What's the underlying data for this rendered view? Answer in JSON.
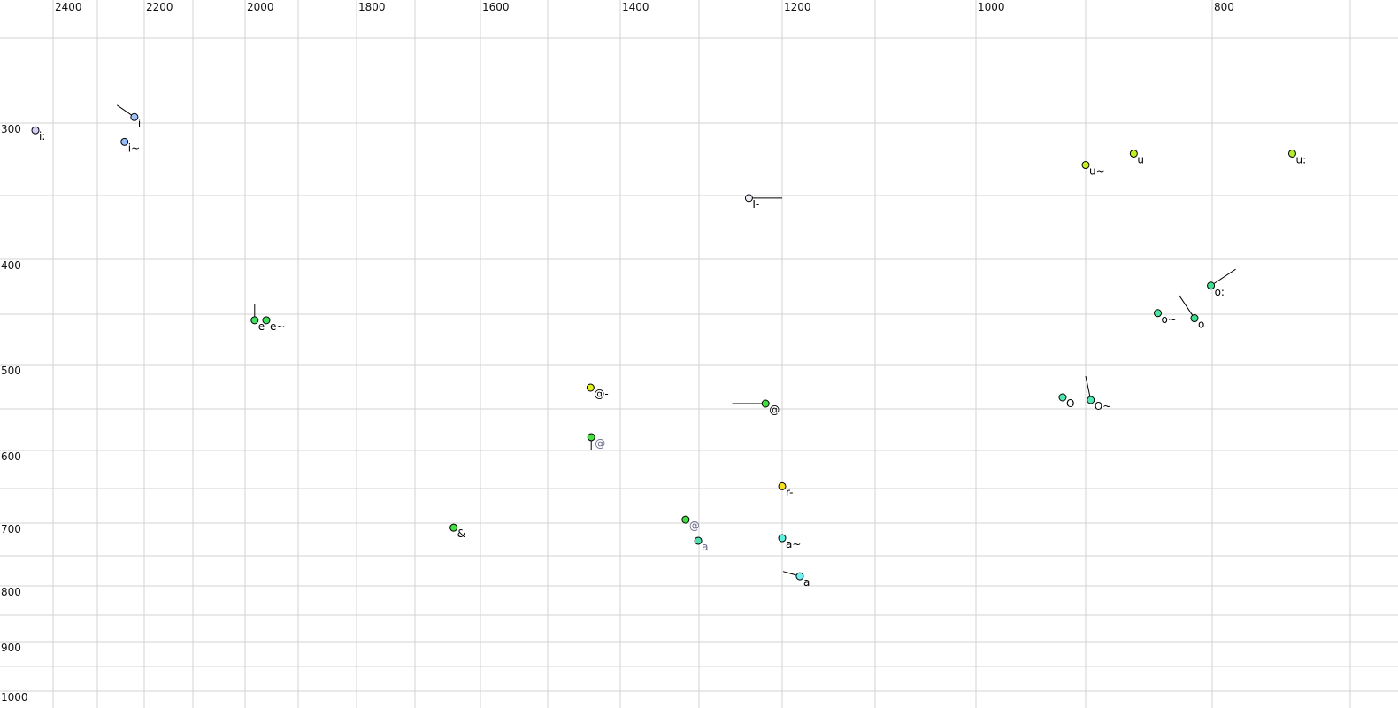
{
  "chart_data": {
    "type": "scatter",
    "title": "",
    "xlabel": "",
    "ylabel": "",
    "x_reversed": true,
    "y_reversed": true,
    "x_scale": "nonlinear (auditory)",
    "y_scale": "nonlinear (auditory)",
    "xlim": [
      2450,
      700
    ],
    "ylim": [
      200,
      1000
    ],
    "grid": true,
    "x_gridlines": [
      2400,
      2300,
      2200,
      2100,
      2000,
      1900,
      1800,
      1700,
      1600,
      1500,
      1400,
      1300,
      1200,
      1100,
      1000,
      900,
      800,
      700
    ],
    "y_gridlines": [
      200,
      300,
      350,
      400,
      450,
      500,
      550,
      600,
      650,
      700,
      750,
      800,
      850,
      900,
      950,
      1000
    ],
    "x_tick_labels": [
      "2400",
      "2200",
      "2000",
      "1800",
      "1600",
      "1400",
      "1200",
      "1000",
      "800"
    ],
    "y_tick_labels": [
      "300",
      "400",
      "500",
      "600",
      "700",
      "800",
      "900",
      "1000"
    ],
    "points": [
      {
        "label": "i:",
        "x": 2440,
        "y": 305,
        "color": "#d8ccf8",
        "label_color": "#000000"
      },
      {
        "label": "i",
        "x": 2221,
        "y": 293,
        "color": "#a4c2f6",
        "label_color": "#000000",
        "trail": [
          2258,
          279
        ]
      },
      {
        "label": "i~",
        "x": 2242,
        "y": 313,
        "color": "#98bcf6",
        "label_color": "#000000"
      },
      {
        "label": "e",
        "x": 1982,
        "y": 456,
        "color": "#40e060",
        "label_color": "#000000",
        "trail": [
          1982,
          441
        ]
      },
      {
        "label": "e~",
        "x": 1960,
        "y": 456,
        "color": "#40e060",
        "label_color": "#000000"
      },
      {
        "label": "u~",
        "x": 900,
        "y": 329,
        "color": "#c8f020",
        "label_color": "#000000"
      },
      {
        "label": "u",
        "x": 862,
        "y": 321,
        "color": "#c0f020",
        "label_color": "#000000"
      },
      {
        "label": "u:",
        "x": 742,
        "y": 321,
        "color": "#b0f030",
        "label_color": "#000000"
      },
      {
        "label": "I-",
        "x": 1240,
        "y": 352,
        "color": "#eeeef4",
        "label_color": "#000000",
        "trail": [
          1200,
          352
        ]
      },
      {
        "label": "o:",
        "x": 801,
        "y": 424,
        "color": "#40e090",
        "label_color": "#000000",
        "trail": [
          783,
          409
        ]
      },
      {
        "label": "o~",
        "x": 843,
        "y": 449,
        "color": "#48e8a0",
        "label_color": "#000000"
      },
      {
        "label": "o",
        "x": 814,
        "y": 454,
        "color": "#40e090",
        "label_color": "#000000",
        "trail": [
          826,
          433
        ]
      },
      {
        "label": "O",
        "x": 921,
        "y": 537,
        "color": "#50e8b0",
        "label_color": "#000000"
      },
      {
        "label": "O~",
        "x": 896,
        "y": 540,
        "color": "#50e8b8",
        "label_color": "#000000",
        "trail": [
          900,
          513
        ]
      },
      {
        "label": "@-",
        "x": 1441,
        "y": 526,
        "color": "#e0f020",
        "label_color": "#000000"
      },
      {
        "label": "@",
        "x": 1220,
        "y": 544,
        "color": "#40e040",
        "label_color": "#000000",
        "trail": [
          1260,
          544
        ]
      },
      {
        "label": "@",
        "x": 1440,
        "y": 584,
        "color": "#48e040",
        "label_color": "#6a6a8a",
        "trail": [
          1440,
          599
        ]
      },
      {
        "label": "r-",
        "x": 1200,
        "y": 647,
        "color": "#f8e020",
        "label_color": "#000000",
        "trail": [
          1200,
          643
        ]
      },
      {
        "label": "&",
        "x": 1641,
        "y": 707,
        "color": "#40e040",
        "label_color": "#000000"
      },
      {
        "label": "@",
        "x": 1317,
        "y": 695,
        "color": "#40e040",
        "label_color": "#6a6a8a"
      },
      {
        "label": "a",
        "x": 1301,
        "y": 727,
        "color": "#50e0b0",
        "label_color": "#6a6a8a",
        "trail": [
          1301,
          732
        ]
      },
      {
        "label": "a~",
        "x": 1200,
        "y": 723,
        "color": "#60f0e0",
        "label_color": "#000000"
      },
      {
        "label": "a",
        "x": 1181,
        "y": 784,
        "color": "#70f0f0",
        "label_color": "#000000",
        "trail": [
          1199,
          776
        ]
      }
    ]
  }
}
